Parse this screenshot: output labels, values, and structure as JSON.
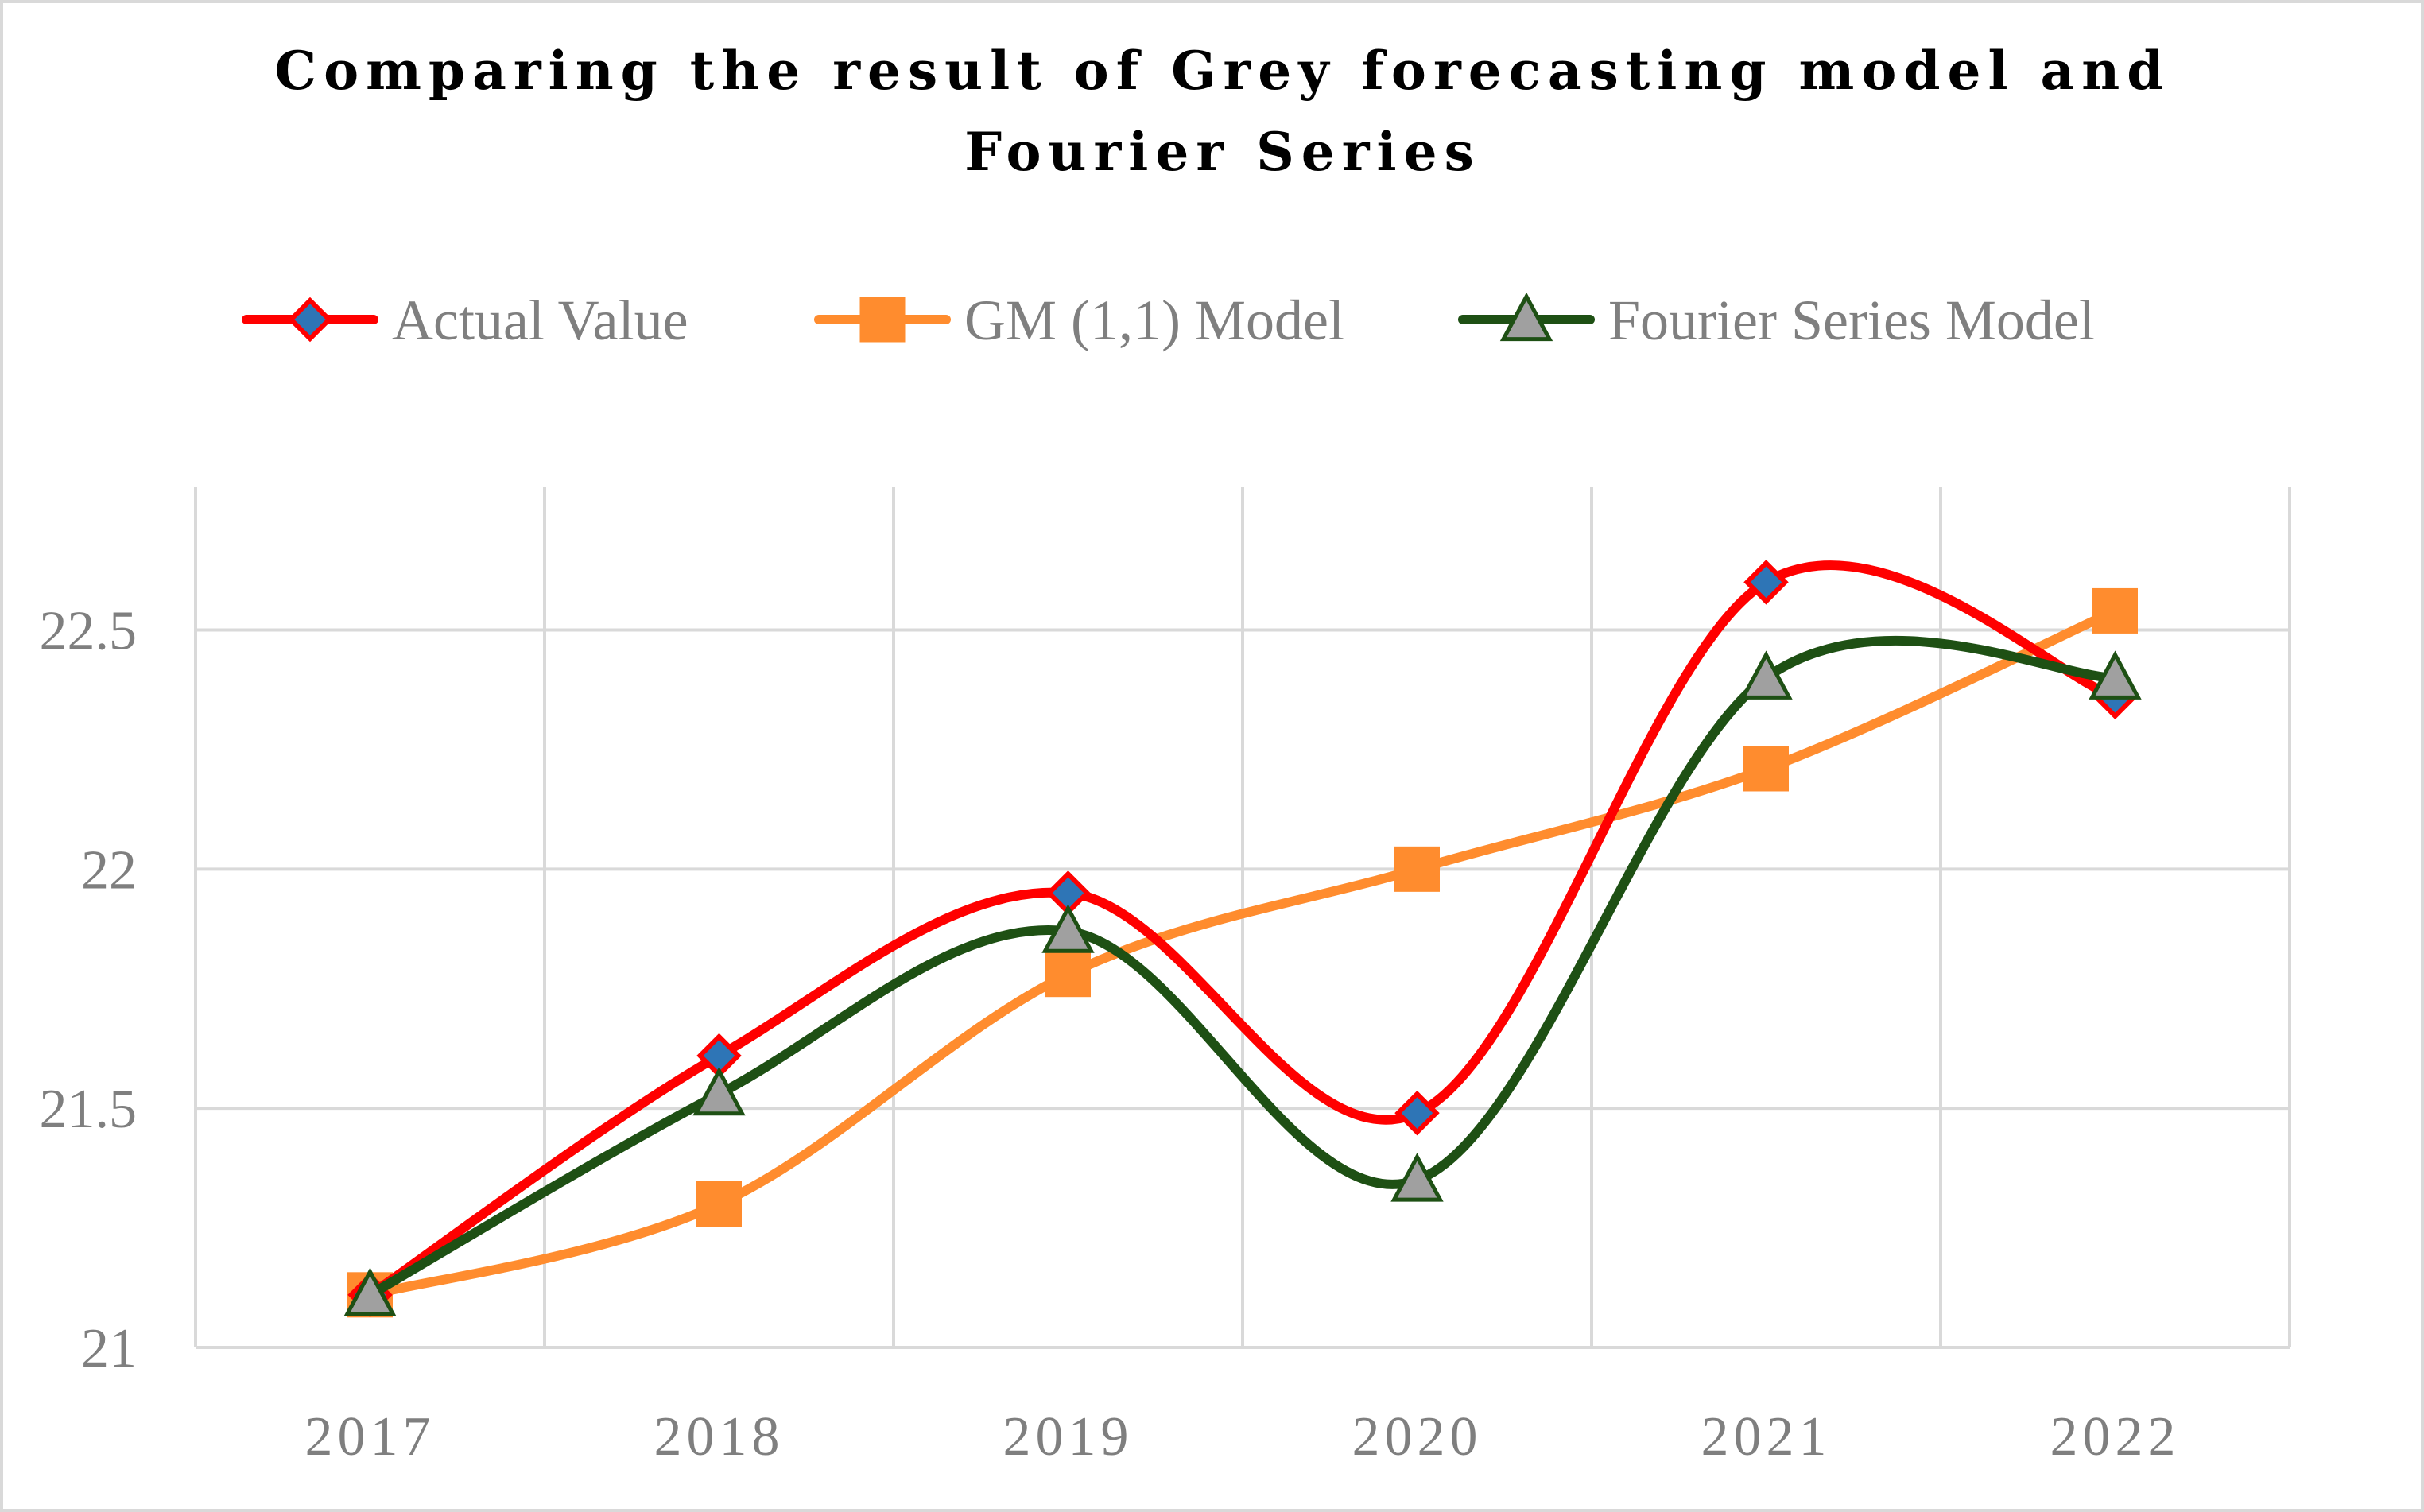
{
  "chart_data": {
    "type": "line",
    "title_lines": [
      "Comparing the result of Grey forecasting model and",
      "Fourier Series"
    ],
    "categories": [
      "2017",
      "2018",
      "2019",
      "2020",
      "2021",
      "2022"
    ],
    "y_ticks": [
      "21",
      "21.5",
      "22",
      "22.5"
    ],
    "ylim": [
      21,
      22.8
    ],
    "xlabel": "",
    "ylabel": "",
    "grid": true,
    "legend_position": "top",
    "series": [
      {
        "name": "Actual Value",
        "values": [
          21.11,
          21.61,
          21.95,
          21.49,
          22.6,
          22.36
        ],
        "color": "#ff0000",
        "marker": "diamond",
        "marker_fill": "#2e75b6"
      },
      {
        "name": "GM (1,1) Model",
        "values": [
          21.11,
          21.3,
          21.78,
          22.0,
          22.21,
          22.54
        ],
        "color": "#ff8c2e",
        "marker": "square",
        "marker_fill": "#ff8c2e"
      },
      {
        "name": "Fourier Series Model",
        "values": [
          21.11,
          21.53,
          21.87,
          21.35,
          22.4,
          22.4
        ],
        "color": "#1e5014",
        "marker": "triangle",
        "marker_fill": "#a0a0a0"
      }
    ]
  }
}
